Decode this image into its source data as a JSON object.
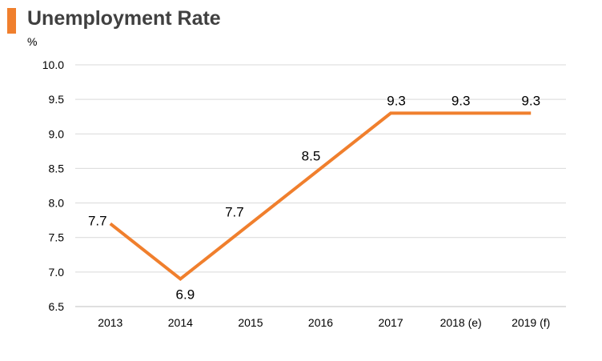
{
  "title": "Unemployment Rate",
  "unit_label": "%",
  "colors": {
    "accent": "#F07F2D",
    "grid": "#D9D9D9",
    "title": "#404040",
    "axis": "#BFBFBF"
  },
  "chart_data": {
    "type": "line",
    "title": "Unemployment Rate",
    "ylabel": "%",
    "xlabel": "",
    "categories": [
      "2013",
      "2014",
      "2015",
      "2016",
      "2017",
      "2018 (e)",
      "2019 (f)"
    ],
    "series": [
      {
        "values": [
          7.7,
          6.9,
          7.7,
          8.5,
          9.3,
          9.3,
          9.3
        ]
      }
    ],
    "data_labels": [
      "7.7",
      "6.9",
      "7.7",
      "8.5",
      "9.3",
      "9.3",
      "9.3"
    ],
    "ylim": [
      6.5,
      10.0
    ],
    "yticks": [
      "6.5",
      "7.0",
      "7.5",
      "8.0",
      "8.5",
      "9.0",
      "9.5",
      "10.0"
    ],
    "grid": true,
    "legend": "none"
  }
}
